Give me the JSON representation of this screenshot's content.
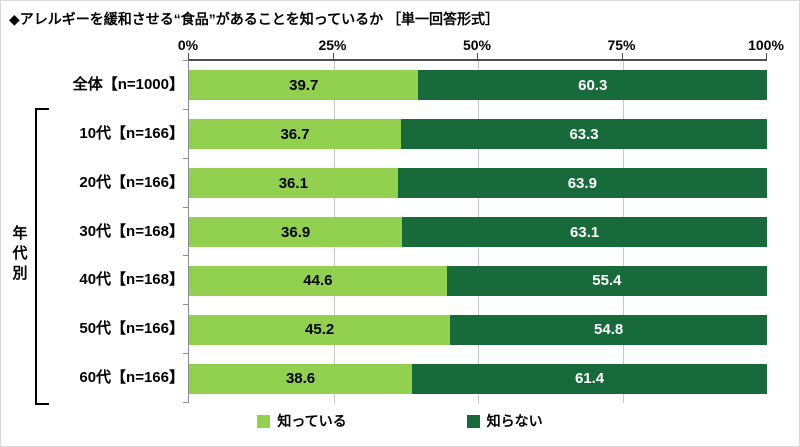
{
  "title": "◆アレルギーを緩和させる“食品”があることを知っているか ［単一回答形式］",
  "group_label": "年代別",
  "colors": {
    "aware": "#92d050",
    "unaware": "#176b3a",
    "gridline": "#c6c6c6",
    "axis": "#4d4d4d"
  },
  "legend": [
    {
      "label": "知っている",
      "color": "#92d050"
    },
    {
      "label": "知らない",
      "color": "#176b3a"
    }
  ],
  "chart_data": {
    "type": "bar",
    "orientation": "horizontal",
    "stacked": true,
    "title": "◆アレルギーを緩和させる“食品”があることを知っているか ［単一回答形式］",
    "categories": [
      "全体【n=1000】",
      "10代【n=166】",
      "20代【n=166】",
      "30代【n=168】",
      "40代【n=168】",
      "50代【n=166】",
      "60代【n=166】"
    ],
    "series": [
      {
        "name": "知っている",
        "color": "#92d050",
        "values": [
          39.7,
          36.7,
          36.1,
          36.9,
          44.6,
          45.2,
          38.6
        ]
      },
      {
        "name": "知らない",
        "color": "#176b3a",
        "values": [
          60.3,
          63.3,
          63.9,
          63.1,
          55.4,
          54.8,
          61.4
        ]
      }
    ],
    "xlim": [
      0,
      100
    ],
    "x_ticks": [
      "0%",
      "25%",
      "50%",
      "75%",
      "100%"
    ],
    "unit": "%",
    "value_decimals": 1,
    "grid": true,
    "legend_position": "bottom"
  }
}
